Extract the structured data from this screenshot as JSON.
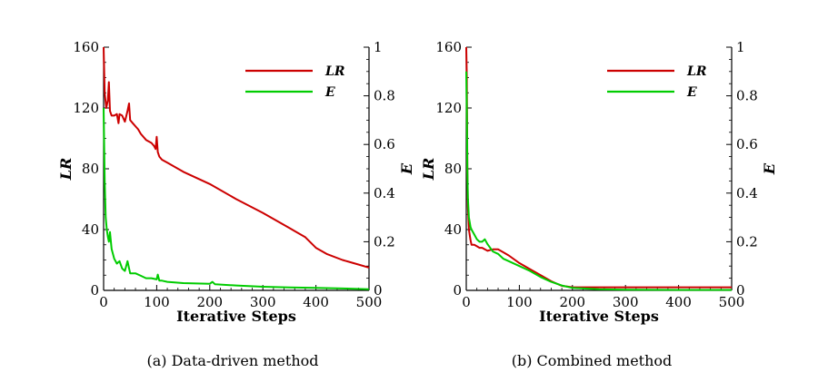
{
  "chart_data": [
    {
      "type": "line",
      "caption": "(a) Data-driven method",
      "xlabel": "Iterative Steps",
      "ylabel": "LR",
      "y2label": "E",
      "xlim": [
        0,
        500
      ],
      "ylim": [
        0,
        160
      ],
      "y2lim": [
        0,
        1
      ],
      "xticks": [
        0,
        100,
        200,
        300,
        400,
        500
      ],
      "yticks": [
        0,
        40,
        80,
        120,
        160
      ],
      "y2ticks": [
        0,
        0.2,
        0.4,
        0.6,
        0.8,
        1
      ],
      "legend_position": "top-right",
      "series": [
        {
          "name": "LR",
          "axis": "left",
          "color": "#cc0000",
          "x": [
            0,
            2,
            5,
            8,
            10,
            12,
            15,
            20,
            25,
            28,
            30,
            35,
            40,
            45,
            48,
            50,
            55,
            60,
            65,
            70,
            80,
            90,
            95,
            98,
            100,
            102,
            105,
            110,
            120,
            150,
            200,
            250,
            300,
            350,
            380,
            400,
            420,
            450,
            480,
            500
          ],
          "y": [
            160,
            130,
            120,
            125,
            137,
            118,
            115,
            115,
            116,
            110,
            116,
            115,
            111,
            118,
            123,
            112,
            110,
            108,
            106,
            103,
            99,
            97,
            95,
            93,
            101,
            91,
            88,
            86,
            84,
            78,
            70,
            60,
            51,
            41,
            35,
            28,
            24,
            20,
            17,
            15
          ]
        },
        {
          "name": "E",
          "axis": "right",
          "color": "#00cc00",
          "x": [
            0,
            2,
            4,
            6,
            8,
            10,
            12,
            15,
            20,
            25,
            30,
            35,
            40,
            45,
            50,
            60,
            70,
            80,
            90,
            100,
            102,
            105,
            110,
            120,
            150,
            200,
            205,
            210,
            250,
            300,
            350,
            400,
            450,
            500
          ],
          "y": [
            0.75,
            0.45,
            0.3,
            0.25,
            0.22,
            0.2,
            0.24,
            0.17,
            0.13,
            0.11,
            0.12,
            0.09,
            0.08,
            0.12,
            0.07,
            0.07,
            0.06,
            0.05,
            0.05,
            0.045,
            0.065,
            0.04,
            0.04,
            0.035,
            0.03,
            0.027,
            0.035,
            0.025,
            0.02,
            0.015,
            0.012,
            0.01,
            0.008,
            0.005
          ]
        }
      ]
    },
    {
      "type": "line",
      "caption": "(b) Combined method",
      "xlabel": "Iterative Steps",
      "ylabel": "LR",
      "y2label": "E",
      "xlim": [
        0,
        500
      ],
      "ylim": [
        0,
        160
      ],
      "y2lim": [
        0,
        1
      ],
      "xticks": [
        0,
        100,
        200,
        300,
        400,
        500
      ],
      "yticks": [
        0,
        40,
        80,
        120,
        160
      ],
      "y2ticks": [
        0,
        0.2,
        0.4,
        0.6,
        0.8,
        1
      ],
      "legend_position": "top-right",
      "series": [
        {
          "name": "LR",
          "axis": "left",
          "color": "#cc0000",
          "x": [
            0,
            1,
            2,
            3,
            5,
            8,
            10,
            15,
            20,
            25,
            30,
            35,
            40,
            50,
            60,
            70,
            80,
            100,
            120,
            140,
            160,
            180,
            190,
            200,
            250,
            300,
            400,
            500
          ],
          "y": [
            160,
            140,
            80,
            55,
            40,
            33,
            30,
            30,
            29,
            28,
            28,
            27,
            26,
            27,
            27,
            25,
            23,
            18,
            14,
            10,
            6,
            3,
            2.5,
            2,
            2,
            2,
            2,
            2
          ]
        },
        {
          "name": "E",
          "axis": "right",
          "color": "#00cc00",
          "x": [
            0,
            1,
            2,
            3,
            5,
            8,
            10,
            15,
            20,
            25,
            30,
            35,
            40,
            50,
            60,
            70,
            80,
            100,
            120,
            140,
            160,
            180,
            200,
            250,
            300,
            400,
            500
          ],
          "y": [
            0.9,
            0.75,
            0.5,
            0.38,
            0.3,
            0.26,
            0.25,
            0.23,
            0.21,
            0.2,
            0.2,
            0.21,
            0.19,
            0.16,
            0.15,
            0.13,
            0.12,
            0.1,
            0.08,
            0.055,
            0.035,
            0.02,
            0.01,
            0.005,
            0.003,
            0.002,
            0.002
          ]
        }
      ]
    }
  ]
}
